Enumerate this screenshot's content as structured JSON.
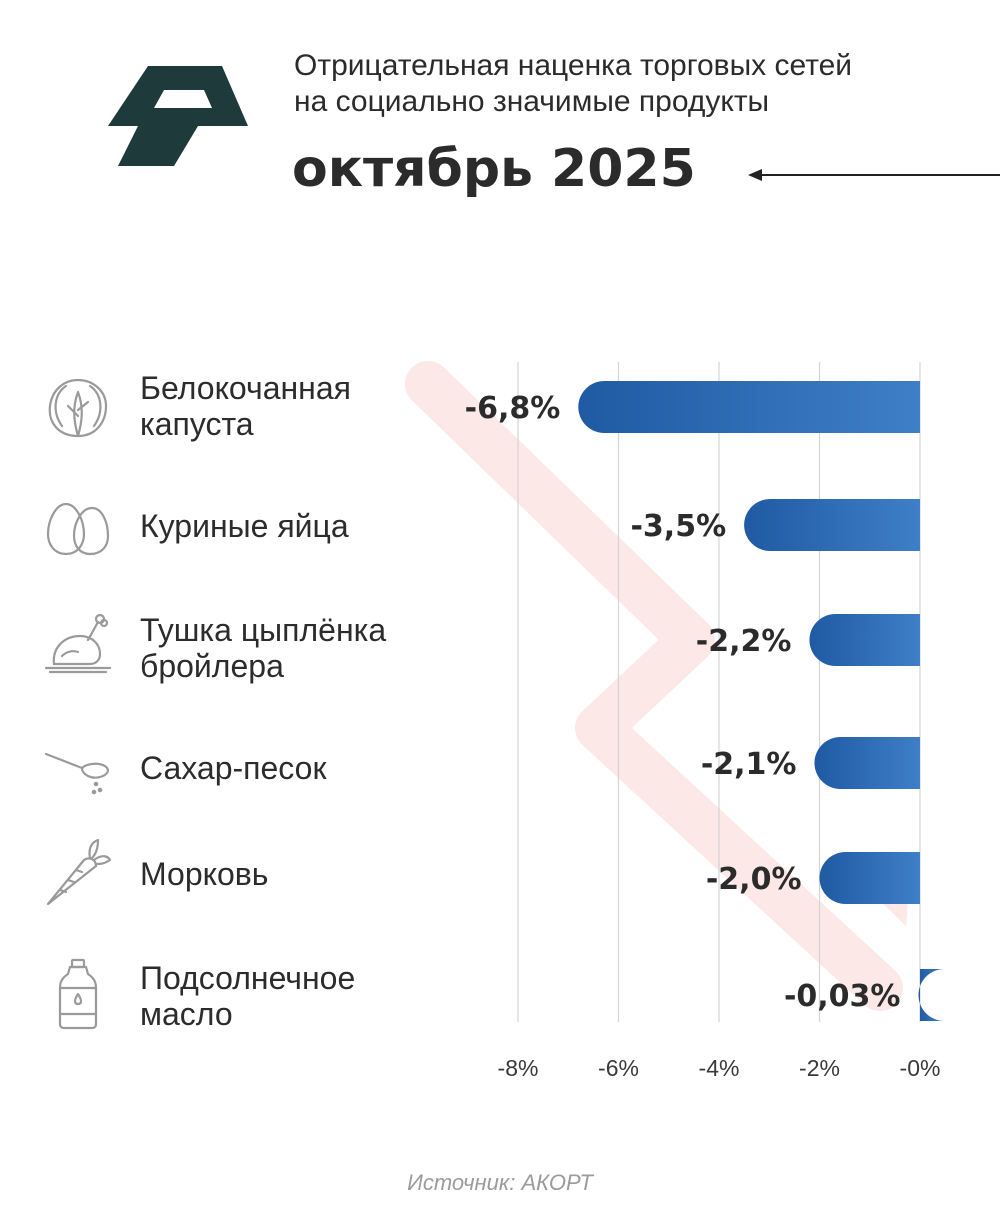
{
  "header": {
    "subtitle_line1": "Отрицательная наценка торговых сетей",
    "subtitle_line2": "на социально значимые продукты",
    "title": "октябрь 2025"
  },
  "logo": {
    "icon": "logo-icon",
    "color": "#1f3a3a"
  },
  "chart_data": {
    "type": "bar",
    "orientation": "horizontal",
    "categories": [
      "Белокочанная капуста",
      "Куриные яйца",
      "Тушка цыплёнка бройлера",
      "Сахар-песок",
      "Морковь",
      "Подсолнечное масло"
    ],
    "values": [
      -6.8,
      -3.5,
      -2.2,
      -2.1,
      -2.0,
      -0.03
    ],
    "value_labels": [
      "-6,8%",
      "-3,5%",
      "-2,2%",
      "-2,1%",
      "-2,0%",
      "-0,03%"
    ],
    "xlim": [
      -8,
      0
    ],
    "xticks": [
      -8,
      -6,
      -4,
      -2,
      0
    ],
    "xtick_labels": [
      "-8%",
      "-6%",
      "-4%",
      "-2%",
      "-0%"
    ],
    "grid": true,
    "bar_color": "#3f7fc8",
    "bar_color_dark": "#1f5aa3"
  },
  "rows": [
    {
      "label_line1": "Белокочанная",
      "label_line2": "капуста",
      "icon": "cabbage-icon"
    },
    {
      "label_line1": "Куриные яйца",
      "label_line2": "",
      "icon": "eggs-icon"
    },
    {
      "label_line1": "Тушка цыплёнка",
      "label_line2": "бройлера",
      "icon": "chicken-icon"
    },
    {
      "label_line1": "Сахар-песок",
      "label_line2": "",
      "icon": "sugar-spoon-icon"
    },
    {
      "label_line1": "Морковь",
      "label_line2": "",
      "icon": "carrot-icon"
    },
    {
      "label_line1": "Подсолнечное",
      "label_line2": "масло",
      "icon": "oil-bottle-icon"
    }
  ],
  "footer": {
    "source": "Источник: АКОРТ"
  },
  "colors": {
    "text": "#2b2b2b",
    "icon": "#9a9a9a",
    "decor_arrow": "#fde8e8"
  }
}
